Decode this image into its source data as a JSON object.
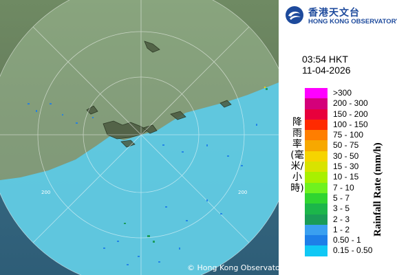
{
  "map": {
    "range_ring_labels": [
      "200",
      "200"
    ],
    "copyright": "© Hong Kong Observatory"
  },
  "brand": {
    "name_zh": "香港天文台",
    "name_en": "HONG KONG OBSERVATORY",
    "color": "#1d4a9c"
  },
  "timestamp": {
    "time": "03:54 HKT",
    "date": "11-04-2026"
  },
  "legend": {
    "title_en": "Rainfall Rate (mm/h)",
    "title_zh": "降雨率(毫米/小時)",
    "items": [
      {
        "label": ">300",
        "color": "#ff00ff"
      },
      {
        "label": "200 - 300",
        "color": "#d4007a"
      },
      {
        "label": "150 - 200",
        "color": "#e8003c"
      },
      {
        "label": "100 - 150",
        "color": "#ff2a00"
      },
      {
        "label": "75 - 100",
        "color": "#ff7e00"
      },
      {
        "label": "50 - 75",
        "color": "#f7a800"
      },
      {
        "label": "30 - 50",
        "color": "#f6d400"
      },
      {
        "label": "15 - 30",
        "color": "#d8e300"
      },
      {
        "label": "10 - 15",
        "color": "#a8f000"
      },
      {
        "label": "7 - 10",
        "color": "#6ff21f"
      },
      {
        "label": "5 - 7",
        "color": "#30d530"
      },
      {
        "label": "3 - 5",
        "color": "#1cb64a"
      },
      {
        "label": "2 - 3",
        "color": "#1a9c57"
      },
      {
        "label": "1 - 2",
        "color": "#3aa0f0"
      },
      {
        "label": "0.50 - 1",
        "color": "#1e7fe8"
      },
      {
        "label": "0.15 - 0.50",
        "color": "#10c8f5"
      }
    ]
  }
}
